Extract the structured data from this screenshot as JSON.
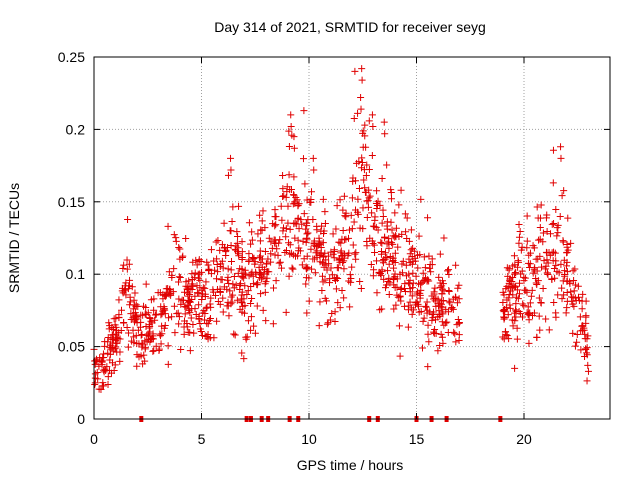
{
  "chart_data": {
    "type": "scatter",
    "title": "Day 314 of 2021, SRMTID for receiver seyg",
    "xlabel": "GPS time / hours",
    "ylabel": "SRMTID / TECUs",
    "xlim": [
      0,
      24
    ],
    "ylim": [
      0,
      0.25
    ],
    "x_ticks": [
      0,
      5,
      10,
      15,
      20
    ],
    "x_tick_labels": [
      "0",
      "5",
      "10",
      "15",
      "20"
    ],
    "y_ticks": [
      0,
      0.05,
      0.1,
      0.15,
      0.2,
      0.25
    ],
    "y_tick_labels": [
      "0",
      "0.05",
      "0.1",
      "0.15",
      "0.2",
      "0.25"
    ],
    "grid": true,
    "marker": "+",
    "color": "#e00000",
    "trend": [
      {
        "x": 0.0,
        "y": 0.035
      },
      {
        "x": 0.5,
        "y": 0.04
      },
      {
        "x": 1.0,
        "y": 0.055
      },
      {
        "x": 1.5,
        "y": 0.09
      },
      {
        "x": 2.0,
        "y": 0.06
      },
      {
        "x": 2.5,
        "y": 0.055
      },
      {
        "x": 3.0,
        "y": 0.065
      },
      {
        "x": 3.5,
        "y": 0.08
      },
      {
        "x": 4.0,
        "y": 0.085
      },
      {
        "x": 4.5,
        "y": 0.08
      },
      {
        "x": 5.0,
        "y": 0.08
      },
      {
        "x": 5.5,
        "y": 0.085
      },
      {
        "x": 6.0,
        "y": 0.095
      },
      {
        "x": 6.5,
        "y": 0.11
      },
      {
        "x": 7.0,
        "y": 0.09
      },
      {
        "x": 7.5,
        "y": 0.095
      },
      {
        "x": 8.0,
        "y": 0.1
      },
      {
        "x": 8.5,
        "y": 0.115
      },
      {
        "x": 9.0,
        "y": 0.14
      },
      {
        "x": 9.5,
        "y": 0.13
      },
      {
        "x": 10.0,
        "y": 0.12
      },
      {
        "x": 10.5,
        "y": 0.105
      },
      {
        "x": 11.0,
        "y": 0.095
      },
      {
        "x": 11.5,
        "y": 0.11
      },
      {
        "x": 12.0,
        "y": 0.125
      },
      {
        "x": 12.5,
        "y": 0.16
      },
      {
        "x": 13.0,
        "y": 0.13
      },
      {
        "x": 13.5,
        "y": 0.12
      },
      {
        "x": 14.0,
        "y": 0.11
      },
      {
        "x": 14.5,
        "y": 0.1
      },
      {
        "x": 15.0,
        "y": 0.095
      },
      {
        "x": 15.5,
        "y": 0.085
      },
      {
        "x": 16.0,
        "y": 0.075
      },
      {
        "x": 16.5,
        "y": 0.08
      },
      {
        "x": 17.0,
        "y": 0.07
      },
      {
        "x": 19.0,
        "y": 0.07
      },
      {
        "x": 19.5,
        "y": 0.085
      },
      {
        "x": 20.0,
        "y": 0.095
      },
      {
        "x": 20.5,
        "y": 0.1
      },
      {
        "x": 21.0,
        "y": 0.11
      },
      {
        "x": 21.5,
        "y": 0.11
      },
      {
        "x": 22.0,
        "y": 0.105
      },
      {
        "x": 22.5,
        "y": 0.075
      },
      {
        "x": 23.0,
        "y": 0.05
      }
    ],
    "segments": [
      [
        0.0,
        17.0
      ],
      [
        18.9,
        23.0
      ]
    ],
    "spikes": [
      {
        "x": 12.45,
        "y": 0.242
      },
      {
        "x": 12.4,
        "y": 0.222
      },
      {
        "x": 12.95,
        "y": 0.21
      },
      {
        "x": 9.15,
        "y": 0.21
      },
      {
        "x": 6.35,
        "y": 0.18
      },
      {
        "x": 21.7,
        "y": 0.188
      },
      {
        "x": 13.5,
        "y": 0.205
      },
      {
        "x": 9.3,
        "y": 0.195
      },
      {
        "x": 10.2,
        "y": 0.18
      }
    ],
    "zero_markers": [
      2.2,
      7.1,
      7.3,
      7.8,
      8.1,
      9.1,
      9.5,
      12.8,
      13.2,
      15.0,
      15.7,
      16.4,
      18.9
    ],
    "point_count": 1400,
    "seed": 31421
  }
}
